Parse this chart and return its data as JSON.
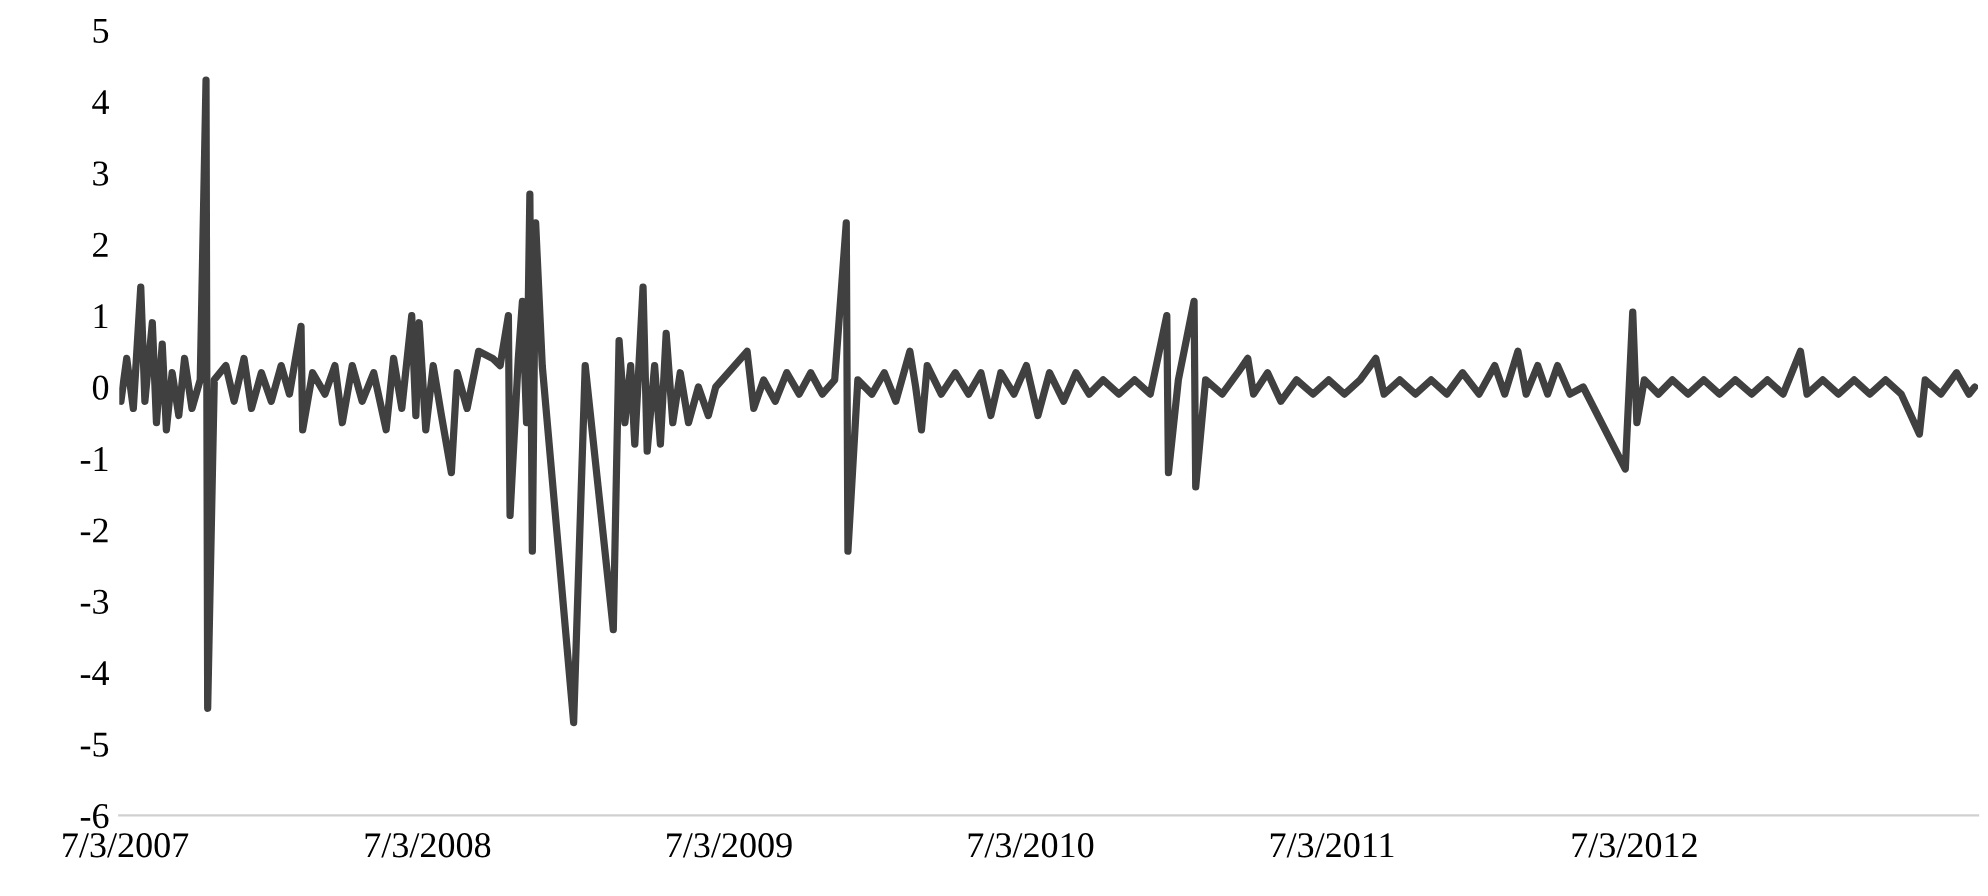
{
  "chart_data": {
    "type": "line",
    "x": [
      "2007-06-28",
      "2007-07-05",
      "2007-07-13",
      "2007-07-22",
      "2007-07-27",
      "2007-08-05",
      "2007-08-10",
      "2007-08-17",
      "2007-08-22",
      "2007-08-29",
      "2007-09-06",
      "2007-09-13",
      "2007-09-22",
      "2007-10-02",
      "2007-10-09",
      "2007-10-11",
      "2007-10-19",
      "2007-11-02",
      "2007-11-12",
      "2007-11-24",
      "2007-12-03",
      "2007-12-15",
      "2007-12-27",
      "2008-01-08",
      "2008-01-18",
      "2008-02-01",
      "2008-02-03",
      "2008-02-15",
      "2008-03-01",
      "2008-03-13",
      "2008-03-22",
      "2008-04-03",
      "2008-04-15",
      "2008-04-29",
      "2008-05-14",
      "2008-05-23",
      "2008-06-02",
      "2008-06-14",
      "2008-06-19",
      "2008-06-23",
      "2008-07-01",
      "2008-07-10",
      "2008-07-20",
      "2008-08-01",
      "2008-08-08",
      "2008-08-20",
      "2008-09-03",
      "2008-09-20",
      "2008-09-29",
      "2008-10-09",
      "2008-10-11",
      "2008-10-21",
      "2008-10-26",
      "2008-10-31",
      "2008-11-04",
      "2008-11-07",
      "2008-11-11",
      "2008-11-19",
      "2008-12-27",
      "2009-01-10",
      "2009-02-13",
      "2009-02-20",
      "2009-02-27",
      "2009-03-06",
      "2009-03-11",
      "2009-03-21",
      "2009-03-26",
      "2009-04-04",
      "2009-04-11",
      "2009-04-18",
      "2009-04-26",
      "2009-05-05",
      "2009-05-15",
      "2009-05-27",
      "2009-06-08",
      "2009-06-17",
      "2009-07-25",
      "2009-08-02",
      "2009-08-14",
      "2009-08-28",
      "2009-09-11",
      "2009-09-26",
      "2009-10-10",
      "2009-10-24",
      "2009-11-08",
      "2009-11-22",
      "2009-11-24",
      "2009-12-06",
      "2009-12-23",
      "2010-01-07",
      "2010-01-21",
      "2010-02-07",
      "2010-02-14",
      "2010-02-21",
      "2010-02-28",
      "2010-03-17",
      "2010-04-03",
      "2010-04-19",
      "2010-05-04",
      "2010-05-16",
      "2010-05-28",
      "2010-06-13",
      "2010-06-28",
      "2010-07-12",
      "2010-07-26",
      "2010-08-12",
      "2010-08-27",
      "2010-09-12",
      "2010-09-29",
      "2010-10-18",
      "2010-11-06",
      "2010-11-25",
      "2010-12-15",
      "2010-12-17",
      "2010-12-29",
      "2011-01-17",
      "2011-01-19",
      "2011-01-31",
      "2011-02-20",
      "2011-03-11",
      "2011-03-23",
      "2011-03-30",
      "2011-04-16",
      "2011-05-02",
      "2011-05-21",
      "2011-06-10",
      "2011-06-29",
      "2011-07-18",
      "2011-08-06",
      "2011-08-25",
      "2011-09-04",
      "2011-09-23",
      "2011-10-12",
      "2011-10-31",
      "2011-11-19",
      "2011-12-08",
      "2011-12-28",
      "2012-01-16",
      "2012-01-28",
      "2012-02-13",
      "2012-02-23",
      "2012-03-08",
      "2012-03-20",
      "2012-04-01",
      "2012-04-16",
      "2012-05-02",
      "2012-06-22",
      "2012-07-01",
      "2012-07-06",
      "2012-07-15",
      "2012-08-01",
      "2012-08-18",
      "2012-09-06",
      "2012-09-25",
      "2012-10-14",
      "2012-11-02",
      "2012-11-22",
      "2012-12-11",
      "2012-12-30",
      "2013-01-20",
      "2013-01-28",
      "2013-02-16",
      "2013-03-07",
      "2013-03-26",
      "2013-04-14",
      "2013-05-03",
      "2013-05-22",
      "2013-06-13",
      "2013-06-20",
      "2013-07-09",
      "2013-07-28",
      "2013-08-12",
      "2013-08-19"
    ],
    "series": [
      {
        "color": "#404040",
        "values": [
          -0.2,
          0.4,
          -0.3,
          1.4,
          -0.2,
          0.9,
          -0.5,
          0.6,
          -0.6,
          0.2,
          -0.4,
          0.4,
          -0.3,
          0.1,
          4.3,
          -4.5,
          0.1,
          0.3,
          -0.2,
          0.4,
          -0.3,
          0.2,
          -0.2,
          0.3,
          -0.1,
          0.85,
          -0.6,
          0.2,
          -0.1,
          0.3,
          -0.5,
          0.3,
          -0.2,
          0.2,
          -0.6,
          0.4,
          -0.3,
          1.0,
          -0.4,
          0.9,
          -0.6,
          0.3,
          -0.4,
          -1.2,
          0.2,
          -0.3,
          0.5,
          0.4,
          0.3,
          1.0,
          -1.8,
          0.4,
          1.2,
          -0.5,
          2.7,
          -2.3,
          2.3,
          0.3,
          -4.7,
          0.3,
          -3.4,
          0.65,
          -0.5,
          0.3,
          -0.8,
          1.4,
          -0.9,
          0.3,
          -0.8,
          0.75,
          -0.5,
          0.2,
          -0.5,
          0.0,
          -0.4,
          0.0,
          0.5,
          -0.3,
          0.1,
          -0.2,
          0.2,
          -0.1,
          0.2,
          -0.1,
          0.1,
          2.3,
          -2.3,
          0.1,
          -0.1,
          0.2,
          -0.2,
          0.5,
          0.0,
          -0.6,
          0.3,
          -0.1,
          0.2,
          -0.1,
          0.2,
          -0.4,
          0.2,
          -0.1,
          0.3,
          -0.4,
          0.2,
          -0.2,
          0.2,
          -0.1,
          0.1,
          -0.1,
          0.1,
          -0.1,
          1.0,
          -1.2,
          0.1,
          1.2,
          -1.4,
          0.1,
          -0.1,
          0.2,
          0.4,
          -0.1,
          0.2,
          -0.2,
          0.1,
          -0.1,
          0.1,
          -0.1,
          0.1,
          0.4,
          -0.1,
          0.1,
          -0.1,
          0.1,
          -0.1,
          0.2,
          -0.1,
          0.3,
          -0.1,
          0.5,
          -0.1,
          0.3,
          -0.1,
          0.3,
          -0.1,
          0.0,
          -1.15,
          1.05,
          -0.5,
          0.1,
          -0.1,
          0.1,
          -0.1,
          0.1,
          -0.1,
          0.1,
          -0.1,
          0.1,
          -0.1,
          0.5,
          -0.1,
          0.1,
          -0.1,
          0.1,
          -0.1,
          0.1,
          -0.1,
          -0.66,
          0.1,
          -0.1,
          0.2,
          -0.1,
          0.0
        ]
      }
    ],
    "xlim": [
      "2007-06-26",
      "2013-08-23"
    ],
    "xticks": [
      {
        "value": "2007-07-03",
        "label": "7/3/2007"
      },
      {
        "value": "2008-07-03",
        "label": "7/3/2008"
      },
      {
        "value": "2009-07-03",
        "label": "7/3/2009"
      },
      {
        "value": "2010-07-03",
        "label": "7/3/2010"
      },
      {
        "value": "2011-07-03",
        "label": "7/3/2011"
      },
      {
        "value": "2012-07-03",
        "label": "7/3/2012"
      }
    ],
    "ylim": [
      -6,
      5
    ],
    "yticks": [
      -6,
      -5,
      -4,
      -3,
      -2,
      -1,
      0,
      1,
      2,
      3,
      4,
      5
    ],
    "grid": false,
    "legend": false,
    "marker": "none",
    "line_style": "solid"
  }
}
